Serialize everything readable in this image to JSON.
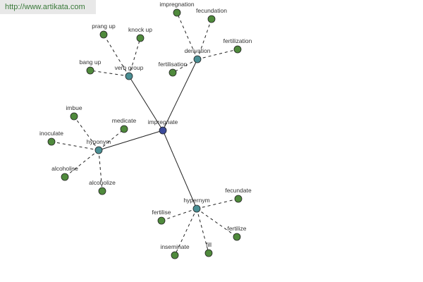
{
  "watermark": "http://www.artikata.com",
  "nodes": [
    {
      "label": "impregnate"
    },
    {
      "label": "verb group"
    },
    {
      "label": "derivation"
    },
    {
      "label": "hyponym"
    },
    {
      "label": "hypernym"
    },
    {
      "label": "prang up"
    },
    {
      "label": "knock up"
    },
    {
      "label": "bang up"
    },
    {
      "label": "impregnation"
    },
    {
      "label": "fecundation"
    },
    {
      "label": "fertilization"
    },
    {
      "label": "fertilisation"
    },
    {
      "label": "imbue"
    },
    {
      "label": "medicate"
    },
    {
      "label": "inoculate"
    },
    {
      "label": "alcoholise"
    },
    {
      "label": "alcoholize"
    },
    {
      "label": "fecundate"
    },
    {
      "label": "fertilise"
    },
    {
      "label": "fertilize"
    },
    {
      "label": "inseminate"
    },
    {
      "label": "fill"
    }
  ]
}
